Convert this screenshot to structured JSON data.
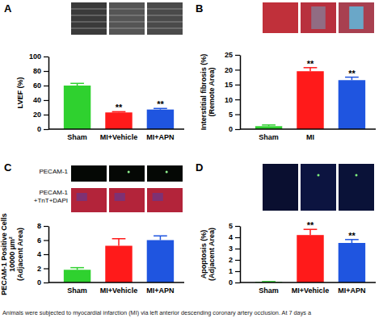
{
  "chart_data": [
    {
      "type": "bar",
      "panel": "A",
      "ylabel": [
        "LVEF (%)"
      ],
      "categories": [
        "Sham",
        "MI+Vehicle",
        "MI+APN"
      ],
      "values": [
        60,
        23,
        27
      ],
      "errors": [
        3,
        1,
        1.5
      ],
      "annotations": [
        null,
        "**",
        "**"
      ],
      "colors": [
        "#2fd12f",
        "#ff1a1a",
        "#1f55e0"
      ],
      "ylim": [
        0,
        100
      ],
      "yticks": [
        0,
        20,
        40,
        60,
        80,
        100
      ]
    },
    {
      "type": "bar",
      "panel": "B",
      "ylabel": [
        "Interstitial fibrosis (%)",
        "(Remote Area)"
      ],
      "categories": [
        "Sham",
        "MI",
        null
      ],
      "values": [
        1,
        19.5,
        16.5
      ],
      "errors": [
        0.4,
        1.2,
        1
      ],
      "annotations": [
        null,
        "**",
        "**"
      ],
      "colors": [
        "#2fd12f",
        "#ff1a1a",
        "#1f55e0"
      ],
      "ylim": [
        0,
        25
      ],
      "yticks": [
        0,
        5,
        10,
        15,
        20,
        25
      ]
    },
    {
      "type": "bar",
      "panel": "C",
      "ylabel": [
        "PECAM-1 Positive Cells",
        "10000 µm²",
        "(Adjacent Area)"
      ],
      "categories": [
        "Sham",
        "MI+Vehicle",
        "MI+APN"
      ],
      "values": [
        1.8,
        5.2,
        6.0
      ],
      "errors": [
        0.3,
        1.0,
        0.6
      ],
      "colors": [
        "#2fd12f",
        "#ff1a1a",
        "#1f55e0"
      ],
      "image_labels": [
        [
          "PECAM-1"
        ],
        [
          "PECAM-1",
          "+TnT+DAPI"
        ]
      ],
      "ylim": [
        0,
        8
      ],
      "yticks": [
        0,
        2,
        4,
        6,
        8
      ]
    },
    {
      "type": "bar",
      "panel": "D",
      "ylabel": [
        "Apoptosis (%)",
        "(Adjacent Area)"
      ],
      "categories": [
        "Sham",
        "MI+Vehicle",
        "MI+APN"
      ],
      "values": [
        0.05,
        4.2,
        3.5
      ],
      "errors": [
        0.03,
        0.5,
        0.3
      ],
      "annotations": [
        null,
        "**",
        "**"
      ],
      "colors": [
        "#2fd12f",
        "#ff1a1a",
        "#1f55e0"
      ],
      "ylim": [
        0,
        5
      ],
      "yticks": [
        0,
        1,
        2,
        3,
        4,
        5
      ]
    }
  ],
  "caption": "Animals were subjected to myocardial infarction (MI) via left anterior descending coronary artery occlusion. At 7 days a"
}
